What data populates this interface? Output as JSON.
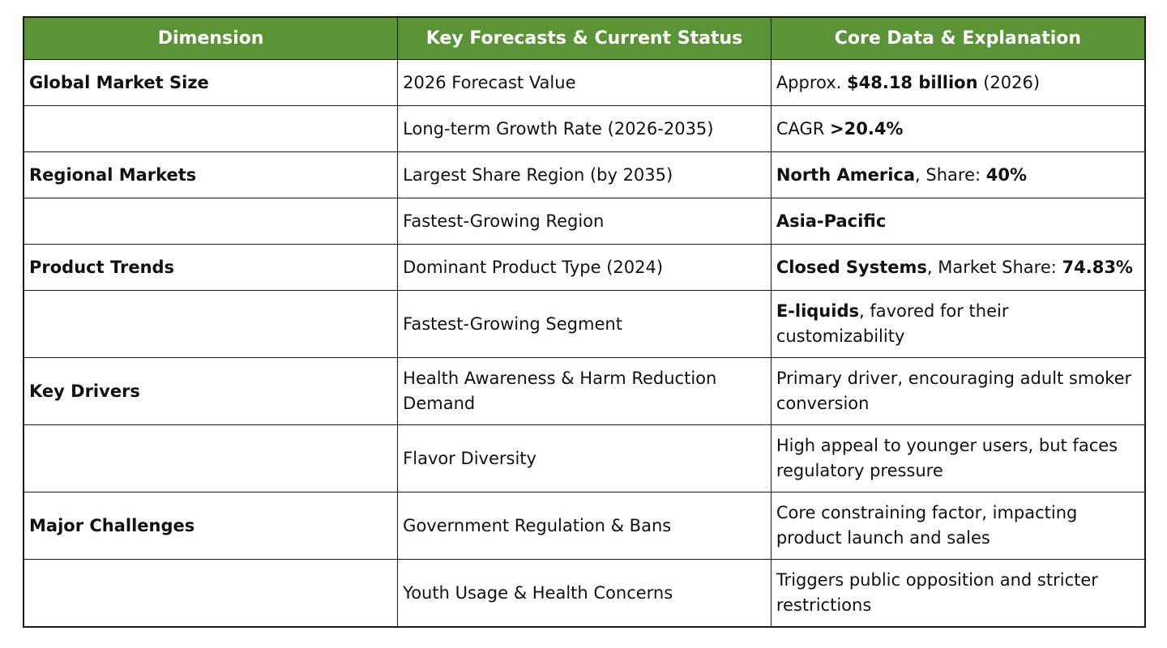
{
  "table": {
    "headers": [
      "Dimension",
      "Key Forecasts & Current Status",
      "Core Data & Explanation"
    ],
    "rows": [
      {
        "dimension": "Global Market Size",
        "forecast": "2026 Forecast Value",
        "core": [
          {
            "t": "Approx. ",
            "b": false
          },
          {
            "t": "$48.18 billion",
            "b": true
          },
          {
            "t": " (2026)",
            "b": false
          }
        ]
      },
      {
        "dimension": "",
        "forecast": "Long-term Growth Rate (2026-2035)",
        "core": [
          {
            "t": "CAGR ",
            "b": false
          },
          {
            "t": ">20.4%",
            "b": true
          }
        ]
      },
      {
        "dimension": "Regional Markets",
        "forecast": "Largest Share Region (by 2035)",
        "core": [
          {
            "t": "North America",
            "b": true
          },
          {
            "t": ", Share: ",
            "b": false
          },
          {
            "t": "40%",
            "b": true
          }
        ]
      },
      {
        "dimension": "",
        "forecast": "Fastest-Growing Region",
        "core": [
          {
            "t": "Asia-Pacific",
            "b": true
          }
        ]
      },
      {
        "dimension": "Product Trends",
        "forecast": "Dominant Product Type (2024)",
        "core": [
          {
            "t": "Closed Systems",
            "b": true
          },
          {
            "t": ", Market Share: ",
            "b": false
          },
          {
            "t": "74.83%",
            "b": true
          }
        ]
      },
      {
        "dimension": "",
        "forecast": "Fastest-Growing Segment",
        "core": [
          {
            "t": "E-liquids",
            "b": true
          },
          {
            "t": ", favored for their customizability",
            "b": false
          }
        ]
      },
      {
        "dimension": "Key Drivers",
        "forecast": "Health Awareness & Harm Reduction Demand",
        "core": [
          {
            "t": "Primary driver, encouraging adult smoker conversion",
            "b": false
          }
        ]
      },
      {
        "dimension": "",
        "forecast": "Flavor Diversity",
        "core": [
          {
            "t": "High appeal to younger users, but faces regulatory pressure",
            "b": false
          }
        ]
      },
      {
        "dimension": "Major Challenges",
        "forecast": "Government Regulation & Bans",
        "core": [
          {
            "t": "Core constraining factor, impacting product launch and sales",
            "b": false
          }
        ]
      },
      {
        "dimension": "",
        "forecast": "Youth Usage & Health Concerns",
        "core": [
          {
            "t": "Triggers public opposition and stricter restrictions",
            "b": false
          }
        ]
      }
    ]
  }
}
